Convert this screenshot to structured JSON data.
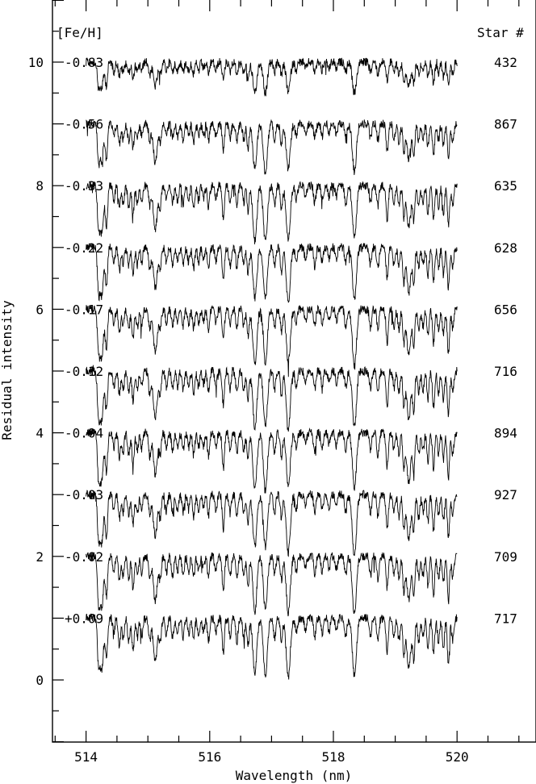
{
  "chart_data": {
    "type": "line",
    "title": "",
    "xlabel": "Wavelength (nm)",
    "ylabel": "Residual intensity",
    "xlim": [
      513,
      521
    ],
    "ylim": [
      -1,
      11
    ],
    "x_ticks_labeled": [
      "514",
      "516",
      "518",
      "520"
    ],
    "x_ticks_values": [
      514,
      516,
      518,
      520
    ],
    "y_ticks_labeled": [
      "0",
      "2",
      "4",
      "6",
      "8",
      "10"
    ],
    "y_ticks_values": [
      0,
      2,
      4,
      6,
      8,
      10
    ],
    "left_header": "[Fe/H]",
    "right_header": "Star #",
    "spectrum_range": [
      514,
      520
    ],
    "spectrum_depth_units": 1,
    "absorption_lines": [
      {
        "wl": 514.2,
        "depth": 0.55
      },
      {
        "wl": 514.25,
        "depth": 0.78
      },
      {
        "wl": 514.33,
        "depth": 0.65
      },
      {
        "wl": 514.45,
        "depth": 0.25
      },
      {
        "wl": 514.54,
        "depth": 0.4
      },
      {
        "wl": 514.6,
        "depth": 0.3
      },
      {
        "wl": 514.69,
        "depth": 0.35
      },
      {
        "wl": 514.76,
        "depth": 0.5
      },
      {
        "wl": 514.83,
        "depth": 0.3
      },
      {
        "wl": 514.9,
        "depth": 0.25
      },
      {
        "wl": 515.03,
        "depth": 0.35
      },
      {
        "wl": 515.12,
        "depth": 0.72
      },
      {
        "wl": 515.2,
        "depth": 0.35
      },
      {
        "wl": 515.3,
        "depth": 0.25
      },
      {
        "wl": 515.4,
        "depth": 0.3
      },
      {
        "wl": 515.48,
        "depth": 0.25
      },
      {
        "wl": 515.57,
        "depth": 0.3
      },
      {
        "wl": 515.66,
        "depth": 0.25
      },
      {
        "wl": 515.74,
        "depth": 0.35
      },
      {
        "wl": 515.82,
        "depth": 0.25
      },
      {
        "wl": 515.9,
        "depth": 0.2
      },
      {
        "wl": 515.98,
        "depth": 0.35
      },
      {
        "wl": 516.1,
        "depth": 0.25
      },
      {
        "wl": 516.22,
        "depth": 0.55
      },
      {
        "wl": 516.33,
        "depth": 0.3
      },
      {
        "wl": 516.44,
        "depth": 0.35
      },
      {
        "wl": 516.55,
        "depth": 0.3
      },
      {
        "wl": 516.62,
        "depth": 0.45
      },
      {
        "wl": 516.73,
        "depth": 0.9
      },
      {
        "wl": 516.9,
        "depth": 0.92
      },
      {
        "wl": 517.05,
        "depth": 0.3
      },
      {
        "wl": 517.16,
        "depth": 0.4
      },
      {
        "wl": 517.27,
        "depth": 0.92
      },
      {
        "wl": 517.4,
        "depth": 0.25
      },
      {
        "wl": 517.55,
        "depth": 0.2
      },
      {
        "wl": 517.7,
        "depth": 0.3
      },
      {
        "wl": 517.82,
        "depth": 0.25
      },
      {
        "wl": 517.93,
        "depth": 0.2
      },
      {
        "wl": 518.05,
        "depth": 0.2
      },
      {
        "wl": 518.2,
        "depth": 0.3
      },
      {
        "wl": 518.34,
        "depth": 0.95
      },
      {
        "wl": 518.6,
        "depth": 0.3
      },
      {
        "wl": 518.72,
        "depth": 0.35
      },
      {
        "wl": 518.87,
        "depth": 0.55
      },
      {
        "wl": 518.98,
        "depth": 0.3
      },
      {
        "wl": 519.06,
        "depth": 0.35
      },
      {
        "wl": 519.14,
        "depth": 0.55
      },
      {
        "wl": 519.22,
        "depth": 0.75
      },
      {
        "wl": 519.3,
        "depth": 0.6
      },
      {
        "wl": 519.38,
        "depth": 0.35
      },
      {
        "wl": 519.45,
        "depth": 0.3
      },
      {
        "wl": 519.53,
        "depth": 0.45
      },
      {
        "wl": 519.62,
        "depth": 0.6
      },
      {
        "wl": 519.7,
        "depth": 0.35
      },
      {
        "wl": 519.78,
        "depth": 0.45
      },
      {
        "wl": 519.86,
        "depth": 0.7
      },
      {
        "wl": 519.93,
        "depth": 0.35
      }
    ],
    "series": [
      {
        "feh": "-0.83",
        "star": "432",
        "offset": 10,
        "strength": 0.55
      },
      {
        "feh": "-0.56",
        "star": "867",
        "offset": 9,
        "strength": 0.8
      },
      {
        "feh": "-0.33",
        "star": "635",
        "offset": 8,
        "strength": 0.95
      },
      {
        "feh": "-0.22",
        "star": "628",
        "offset": 7,
        "strength": 0.95
      },
      {
        "feh": "-0.17",
        "star": "656",
        "offset": 6,
        "strength": 0.95
      },
      {
        "feh": "-0.12",
        "star": "716",
        "offset": 5,
        "strength": 1.0
      },
      {
        "feh": "-0.04",
        "star": "894",
        "offset": 4,
        "strength": 1.0
      },
      {
        "feh": "-0.03",
        "star": "927",
        "offset": 3,
        "strength": 1.0
      },
      {
        "feh": "-0.02",
        "star": "709",
        "offset": 2,
        "strength": 1.0
      },
      {
        "feh": "+0.09",
        "star": "717",
        "offset": 1,
        "strength": 1.05
      }
    ]
  }
}
